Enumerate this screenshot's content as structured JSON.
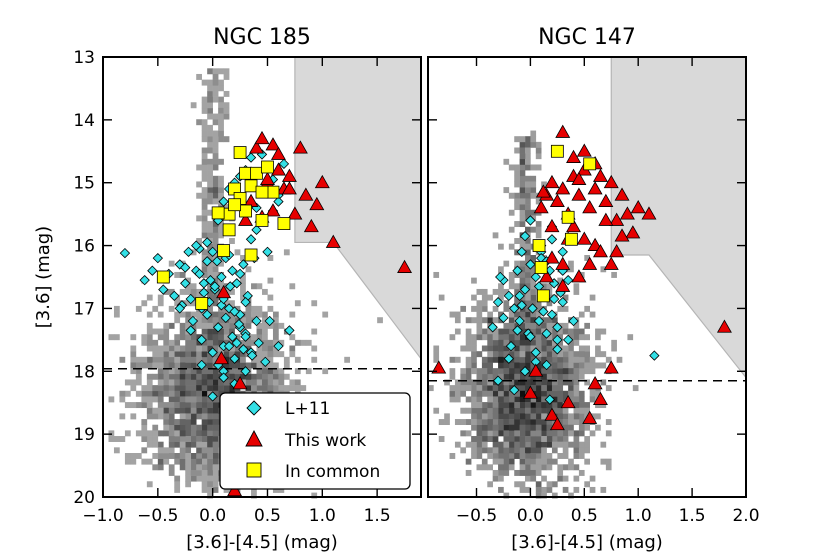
{
  "chart_data": [
    {
      "type": "scatter",
      "title": "NGC 185",
      "xlabel": "[3.6]-[4.5] (mag)",
      "ylabel": "[3.6] (mag)",
      "xlim": [
        -1.0,
        1.9
      ],
      "ylim": [
        20,
        13
      ],
      "xticks": [
        -1.0,
        -0.5,
        0.0,
        0.5,
        1.0,
        1.5
      ],
      "xtick_labels": [
        "−1.0",
        "−0.5",
        "0.0",
        "0.5",
        "1.0",
        "1.5"
      ],
      "yticks": [
        13,
        14,
        15,
        16,
        17,
        18,
        19,
        20
      ],
      "ytick_labels": [
        "13",
        "14",
        "15",
        "16",
        "17",
        "18",
        "19",
        "20"
      ],
      "dashed_line_y": 17.96,
      "shaded_region": [
        [
          0.1,
          13
        ],
        [
          1.9,
          13
        ],
        [
          1.9,
          17.8
        ],
        [
          1.1,
          15.95
        ],
        [
          0.75,
          15.95
        ],
        [
          0.75,
          13
        ]
      ],
      "density": {
        "center": [
          0.02,
          18.35
        ],
        "sigma": [
          0.33,
          0.75
        ],
        "n": 2400,
        "seed": 11,
        "branch": {
          "x0": 0.0,
          "y_from": 13.2,
          "y_to": 17.5,
          "n": 280
        }
      },
      "series": [
        {
          "name": "L+11",
          "marker": "diamond",
          "color": "#33e0e6",
          "x": [
            -0.8,
            -0.62,
            -0.55,
            -0.5,
            -0.45,
            -0.4,
            -0.35,
            -0.3,
            -0.28,
            -0.25,
            -0.22,
            -0.2,
            -0.18,
            -0.15,
            -0.12,
            -0.1,
            -0.08,
            -0.05,
            -0.03,
            0.0,
            0.02,
            0.05,
            0.08,
            0.1,
            0.12,
            0.15,
            0.18,
            0.2,
            0.22,
            0.25,
            0.28,
            0.3,
            0.32,
            0.35,
            0.38,
            0.4,
            0.45,
            0.5,
            0.55,
            0.6,
            0.65,
            -0.15,
            -0.1,
            -0.05,
            0.0,
            0.05,
            0.1,
            0.15,
            0.2,
            0.25,
            0.3,
            0.35,
            -0.3,
            -0.2,
            -0.1,
            0.0,
            0.1,
            0.2,
            0.3,
            0.4,
            0.05,
            0.1,
            0.15,
            0.2,
            0.25,
            0.3,
            0.35,
            0.4,
            0.45,
            0.5,
            0.55,
            0.6,
            -0.25,
            -0.05,
            0.15,
            0.25,
            0.02,
            0.08,
            0.12,
            0.18,
            0.22,
            0.28,
            -0.12,
            -0.08,
            -0.02,
            0.04,
            0.1,
            0.16,
            0.2,
            0.24,
            0.3,
            0.36,
            0.42,
            0.48,
            0.52,
            0.6,
            0.7
          ],
          "y": [
            16.12,
            16.55,
            16.4,
            16.2,
            16.7,
            16.45,
            16.8,
            16.3,
            16.95,
            16.6,
            16.1,
            16.85,
            17.2,
            16.4,
            16.05,
            17.0,
            16.6,
            16.25,
            16.9,
            16.1,
            16.7,
            17.3,
            16.5,
            17.6,
            16.2,
            17.0,
            16.4,
            17.8,
            16.6,
            17.1,
            16.3,
            17.4,
            16.8,
            15.9,
            16.2,
            15.75,
            15.6,
            16.1,
            15.45,
            15.2,
            14.7,
            16.0,
            17.5,
            17.1,
            17.7,
            17.9,
            18.0,
            17.6,
            18.2,
            17.3,
            18.0,
            17.7,
            17.0,
            17.35,
            17.9,
            18.4,
            18.1,
            18.5,
            16.9,
            17.2,
            15.6,
            15.3,
            15.1,
            15.0,
            14.9,
            14.8,
            14.6,
            15.4,
            14.55,
            14.75,
            14.95,
            15.3,
            16.35,
            15.95,
            16.15,
            16.45,
            16.65,
            16.95,
            17.15,
            17.45,
            17.55,
            17.65,
            16.45,
            16.75,
            16.55,
            16.25,
            16.85,
            16.65,
            17.05,
            17.25,
            17.45,
            17.75,
            17.55,
            17.85,
            17.2,
            17.6,
            17.35
          ]
        },
        {
          "name": "This work",
          "marker": "triangle",
          "color": "#e60000",
          "x": [
            0.4,
            0.45,
            0.55,
            0.6,
            0.7,
            0.8,
            0.5,
            0.65,
            0.85,
            0.95,
            1.0,
            1.1,
            0.55,
            0.75,
            0.35,
            0.9,
            1.75,
            0.3,
            0.45,
            0.6,
            0.5,
            0.7,
            0.25,
            0.1,
            0.08,
            0.15,
            0.35,
            0.2
          ],
          "y": [
            14.45,
            14.3,
            14.4,
            14.55,
            14.9,
            14.45,
            15.0,
            15.1,
            15.2,
            15.35,
            15.0,
            15.95,
            15.45,
            15.5,
            15.3,
            15.7,
            16.35,
            15.6,
            15.55,
            14.8,
            14.95,
            15.1,
            18.2,
            16.75,
            17.8,
            18.55,
            18.5,
            19.9
          ]
        },
        {
          "name": "In common",
          "marker": "square",
          "color": "#ffff00",
          "x": [
            0.25,
            -0.45,
            -0.1,
            0.1,
            0.2,
            0.3,
            0.4,
            0.5,
            0.35,
            0.55,
            0.65,
            0.45,
            0.15,
            0.25,
            0.05,
            0.3,
            0.45,
            0.15,
            0.35,
            0.2
          ],
          "y": [
            14.52,
            16.5,
            16.92,
            16.08,
            15.1,
            14.85,
            14.85,
            14.75,
            15.05,
            15.15,
            15.65,
            15.6,
            15.5,
            15.25,
            15.48,
            15.45,
            15.15,
            15.75,
            16.15,
            15.35
          ]
        }
      ],
      "legend": {
        "location": "lower-right",
        "entries": [
          "L+11",
          "This work",
          "In common"
        ]
      }
    },
    {
      "type": "scatter",
      "title": "NGC 147",
      "xlabel": "[3.6]-[4.5] (mag)",
      "ylabel": "",
      "xlim": [
        -0.95,
        2.0
      ],
      "ylim": [
        20,
        13
      ],
      "xticks": [
        -0.5,
        0.0,
        0.5,
        1.0,
        1.5,
        2.0
      ],
      "xtick_labels": [
        "−0.5",
        "0.0",
        "0.5",
        "1.0",
        "1.5",
        "2.0"
      ],
      "dashed_line_y": 18.15,
      "shaded_region": [
        [
          0.1,
          13
        ],
        [
          2.0,
          13
        ],
        [
          2.0,
          18.1
        ],
        [
          1.1,
          16.15
        ],
        [
          0.75,
          16.15
        ],
        [
          0.75,
          13
        ]
      ],
      "density": {
        "center": [
          -0.05,
          18.3
        ],
        "sigma": [
          0.3,
          0.75
        ],
        "n": 2200,
        "seed": 29,
        "branch": {
          "x0": -0.05,
          "y_from": 14.2,
          "y_to": 17.6,
          "n": 260
        }
      },
      "series": [
        {
          "name": "L+11",
          "marker": "diamond",
          "color": "#33e0e6",
          "x": [
            -0.3,
            -0.25,
            -0.2,
            -0.15,
            -0.12,
            -0.1,
            -0.08,
            -0.05,
            -0.02,
            0.0,
            0.02,
            0.05,
            0.08,
            0.1,
            0.12,
            0.15,
            0.18,
            0.2,
            0.22,
            0.25,
            0.3,
            0.35,
            0.4,
            -0.35,
            -0.28,
            -0.18,
            -0.05,
            0.05,
            0.15,
            0.25,
            0.1,
            0.2,
            0.3,
            0.0,
            -0.1,
            -0.2,
            0.1,
            0.2,
            0.3,
            -0.15,
            0.05,
            0.25,
            1.15,
            -0.05,
            0.15,
            0.35,
            -0.25,
            -0.08,
            0.08,
            0.22,
            -0.12,
            0.12,
            0.28,
            -0.3,
            0.0,
            0.18
          ],
          "y": [
            16.9,
            16.55,
            16.8,
            17.0,
            16.4,
            17.2,
            16.1,
            16.7,
            17.4,
            16.3,
            17.0,
            16.5,
            17.2,
            16.1,
            16.8,
            17.4,
            16.4,
            17.1,
            16.6,
            17.3,
            16.9,
            17.5,
            17.2,
            17.3,
            16.5,
            17.6,
            18.0,
            17.7,
            17.9,
            17.5,
            16.2,
            15.9,
            16.4,
            15.6,
            16.8,
            17.8,
            16.0,
            15.7,
            16.1,
            18.3,
            17.85,
            17.65,
            17.75,
            15.85,
            16.25,
            16.55,
            17.15,
            16.95,
            16.65,
            16.85,
            17.35,
            17.05,
            16.75,
            18.15,
            17.45,
            18.45
          ]
        },
        {
          "name": "This work",
          "marker": "triangle",
          "color": "#e60000",
          "x": [
            0.1,
            0.15,
            0.2,
            0.25,
            0.3,
            0.35,
            0.4,
            0.45,
            0.5,
            0.55,
            0.6,
            0.65,
            0.7,
            0.75,
            0.8,
            0.85,
            0.9,
            0.95,
            1.0,
            1.1,
            0.3,
            0.4,
            0.5,
            0.6,
            0.7,
            0.8,
            0.2,
            0.35,
            0.45,
            0.55,
            0.65,
            0.75,
            0.85,
            0.4,
            0.5,
            0.6,
            0.3,
            0.2,
            0.45,
            1.8,
            0.15,
            0.05,
            -0.85,
            0.0,
            0.2,
            0.35,
            0.25,
            0.6,
            0.75,
            0.55,
            0.65,
            0.3,
            0.12
          ],
          "y": [
            15.4,
            15.2,
            15.0,
            15.3,
            15.1,
            15.5,
            14.9,
            15.2,
            14.8,
            15.4,
            15.1,
            14.9,
            15.3,
            15.0,
            15.6,
            15.2,
            15.5,
            15.8,
            15.4,
            15.5,
            14.2,
            15.7,
            15.9,
            16.0,
            15.6,
            16.1,
            16.2,
            15.9,
            16.5,
            16.3,
            16.1,
            16.3,
            15.85,
            14.6,
            14.5,
            14.7,
            16.3,
            15.7,
            14.95,
            17.3,
            16.5,
            18.0,
            17.95,
            18.35,
            18.7,
            18.5,
            18.85,
            18.2,
            17.95,
            18.75,
            18.45,
            16.65,
            15.15
          ]
        },
        {
          "name": "In common",
          "marker": "square",
          "color": "#ffff00",
          "x": [
            0.25,
            0.55,
            0.35,
            0.08,
            0.38,
            0.12,
            0.1
          ],
          "y": [
            14.5,
            14.7,
            15.55,
            16.0,
            15.9,
            16.8,
            16.35
          ]
        }
      ]
    }
  ]
}
